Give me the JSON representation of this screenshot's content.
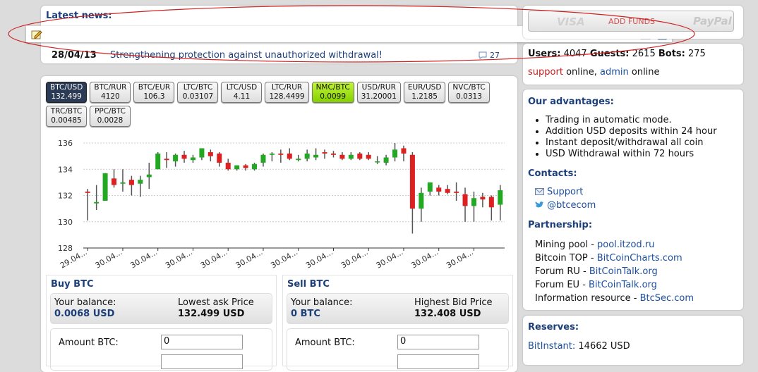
{
  "news": {
    "title": "Latest news:",
    "date": "28/04/13",
    "headline": "Strengthening protection against unauthorized withdrawal!",
    "comments": "27"
  },
  "funds": {
    "visa": "VISA",
    "button": "ADD FUNDS",
    "paypal": "PayPal"
  },
  "online": {
    "users_label": "Users:",
    "users": "4047",
    "guests_label": "Guests:",
    "guests": "2615",
    "bots_label": "Bots:",
    "bots": "275",
    "support": "support",
    "support_status": "online,",
    "admin": "admin",
    "admin_status": "online"
  },
  "pairs": [
    {
      "name": "BTC/USD",
      "price": "132.499",
      "state": "selected"
    },
    {
      "name": "BTC/RUR",
      "price": "4120"
    },
    {
      "name": "BTC/EUR",
      "price": "106.3"
    },
    {
      "name": "LTC/BTC",
      "price": "0.03107"
    },
    {
      "name": "LTC/USD",
      "price": "4.11"
    },
    {
      "name": "LTC/RUR",
      "price": "128.4499"
    },
    {
      "name": "NMC/BTC",
      "price": "0.0099",
      "state": "up"
    },
    {
      "name": "USD/RUR",
      "price": "31.20001"
    },
    {
      "name": "EUR/USD",
      "price": "1.2185"
    },
    {
      "name": "NVC/BTC",
      "price": "0.0313"
    },
    {
      "name": "TRC/BTC",
      "price": "0.00485"
    },
    {
      "name": "PPC/BTC",
      "price": "0.0028"
    }
  ],
  "chart_data": {
    "type": "candlestick",
    "up_color": "#22a822",
    "down_color": "#dd2020",
    "grid": true,
    "categories": [
      "29.04...",
      null,
      null,
      null,
      "30.04...",
      null,
      null,
      null,
      "30.04...",
      null,
      null,
      null,
      "30.04...",
      null,
      null,
      null,
      "30.04...",
      null,
      null,
      null,
      "30.04...",
      null,
      null,
      null,
      "30.04...",
      null,
      null,
      null,
      "30.04...",
      null,
      null,
      null,
      "30.04...",
      null,
      null,
      null,
      "30.04...",
      null,
      null,
      null,
      "30.04...",
      null,
      null,
      null,
      "30.04...",
      null,
      null,
      null
    ],
    "open": [
      132.3,
      131.4,
      131.6,
      133.3,
      132.9,
      133.2,
      132.9,
      133.4,
      134.0,
      134.8,
      134.6,
      135.1,
      134.7,
      134.9,
      135.3,
      135.2,
      134.5,
      134.0,
      134.3,
      134.0,
      134.5,
      135.1,
      135.2,
      135.2,
      134.7,
      134.8,
      134.9,
      135.3,
      135.2,
      135.1,
      134.8,
      135.2,
      135.1,
      134.6,
      134.5,
      134.9,
      135.6,
      135.1,
      131.0,
      132.3,
      132.6,
      132.5,
      132.3,
      132.1,
      131.2,
      131.9,
      131.9,
      131.3
    ],
    "high": [
      132.5,
      132.8,
      133.7,
      134.0,
      134.0,
      133.5,
      133.5,
      134.5,
      135.3,
      135.3,
      135.2,
      135.4,
      135.1,
      135.6,
      135.5,
      135.3,
      134.8,
      134.3,
      134.4,
      134.5,
      135.2,
      135.3,
      135.5,
      135.6,
      135.1,
      135.5,
      135.6,
      135.5,
      135.4,
      135.3,
      135.3,
      135.3,
      135.3,
      135.0,
      135.1,
      136.0,
      135.8,
      135.3,
      132.6,
      133.0,
      132.8,
      132.8,
      133.0,
      132.6,
      132.3,
      132.2,
      132.0,
      132.8
    ],
    "low": [
      130.1,
      130.9,
      131.6,
      132.6,
      132.3,
      132.0,
      131.9,
      132.5,
      134.0,
      134.1,
      134.2,
      134.5,
      134.5,
      134.7,
      134.6,
      134.2,
      133.9,
      133.9,
      133.9,
      133.9,
      134.2,
      134.6,
      134.5,
      134.7,
      134.6,
      134.6,
      134.7,
      134.8,
      134.9,
      134.7,
      134.7,
      134.7,
      134.7,
      134.4,
      134.3,
      134.6,
      134.6,
      129.1,
      130.0,
      132.0,
      132.0,
      132.1,
      131.6,
      130.0,
      130.0,
      131.1,
      130.1,
      130.1
    ],
    "close": [
      132.2,
      131.5,
      133.7,
      132.8,
      133.0,
      132.8,
      133.2,
      133.6,
      135.2,
      134.7,
      135.1,
      134.8,
      134.9,
      135.6,
      135.0,
      134.5,
      134.0,
      134.3,
      134.1,
      134.4,
      135.1,
      135.2,
      135.1,
      134.8,
      134.8,
      135.2,
      135.1,
      135.2,
      135.1,
      134.8,
      135.1,
      134.8,
      134.8,
      134.6,
      134.9,
      135.5,
      135.2,
      131.0,
      132.2,
      133.0,
      132.3,
      132.2,
      132.2,
      131.2,
      131.8,
      131.7,
      131.1,
      132.4
    ],
    "ylim": [
      128,
      136
    ],
    "yticks": [
      128,
      130,
      132,
      134,
      136
    ]
  },
  "buy": {
    "title": "Buy BTC",
    "balance_label": "Your balance:",
    "balance": "0.0068 USD",
    "price_label": "Lowest ask Price",
    "price": "132.499 USD",
    "amount_label": "Amount BTC:",
    "amount": "0"
  },
  "sell": {
    "title": "Sell BTC",
    "balance_label": "Your balance:",
    "balance": "0 BTC",
    "price_label": "Highest Bid Price",
    "price": "132.408 USD",
    "amount_label": "Amount BTC:",
    "amount": "0"
  },
  "advantages": {
    "title": "Our advantages:",
    "items": [
      "Trading in automatic mode.",
      "Addition USD deposits within 24 hour",
      "Instant deposit/withdrawal all coin",
      "USD Withdrawal within 72 hours"
    ]
  },
  "contacts": {
    "title": "Contacts:",
    "items": [
      "Support",
      "@btcecom"
    ]
  },
  "partnership": {
    "title": "Partnership:",
    "items": [
      {
        "label": "Mining pool -",
        "link": "pool.itzod.ru"
      },
      {
        "label": "Bitcoin TOP -",
        "link": "BitCoinCharts.com"
      },
      {
        "label": "Forum RU -",
        "link": "BitCoinTalk.org"
      },
      {
        "label": "Forum EU -",
        "link": "BitCoinTalk.org"
      },
      {
        "label": "Information resource -",
        "link": "BtcSec.com"
      }
    ]
  },
  "reserves": {
    "title": "Reserves:",
    "items": [
      {
        "label": "BitInstant:",
        "value": "14662 USD"
      }
    ]
  }
}
